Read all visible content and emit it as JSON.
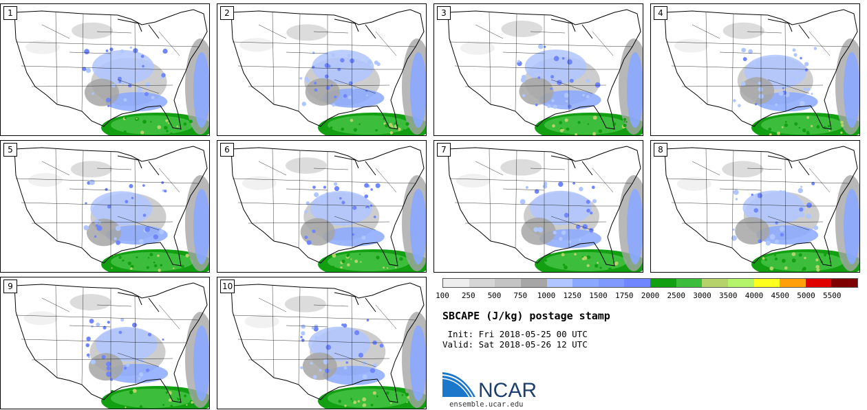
{
  "panels": [
    {
      "label": "1"
    },
    {
      "label": "2"
    },
    {
      "label": "3"
    },
    {
      "label": "4"
    },
    {
      "label": "5"
    },
    {
      "label": "6"
    },
    {
      "label": "7"
    },
    {
      "label": "8"
    },
    {
      "label": "9"
    },
    {
      "label": "10"
    }
  ],
  "colorbar": {
    "ticks": [
      "100",
      "250",
      "500",
      "750",
      "1000",
      "1250",
      "1500",
      "1750",
      "2000",
      "2500",
      "3000",
      "3500",
      "4000",
      "4500",
      "5000",
      "5500"
    ],
    "colors": [
      "#eeeeee",
      "#d6d6d6",
      "#c4c4c4",
      "#a6a6a6",
      "#b0c6ff",
      "#8aa8ff",
      "#7f99ff",
      "#6f86ff",
      "#12a012",
      "#3cbd3c",
      "#b6d26a",
      "#b4f46a",
      "#ffff1e",
      "#ff9f0a",
      "#e00000",
      "#7e0000"
    ]
  },
  "title": "SBCAPE (J/kg) postage stamp",
  "init": " Init: Fri 2018-05-25 00 UTC",
  "valid": "Valid: Sat 2018-05-26 12 UTC",
  "logo": {
    "text": "NCAR",
    "colors": {
      "blue": "#1a77c9",
      "navy": "#1c3f6e"
    }
  },
  "site": "ensemble.ucar.edu"
}
